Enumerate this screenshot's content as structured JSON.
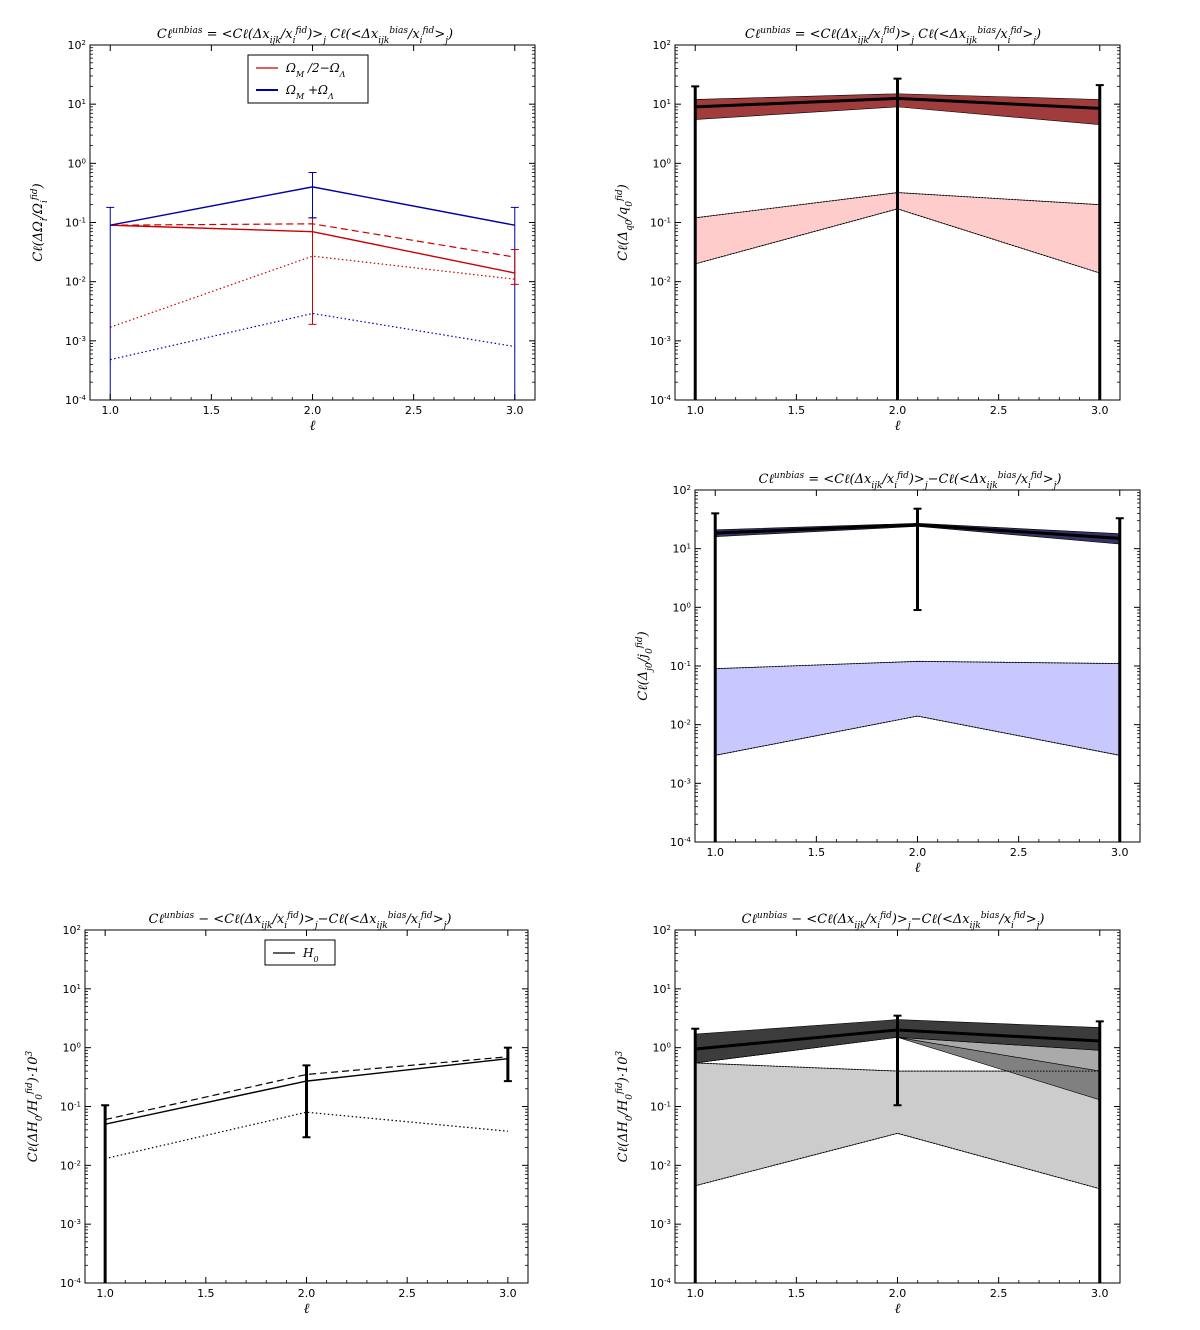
{
  "figure": {
    "panels": [
      "omega",
      "q0",
      "j0",
      "h0_left",
      "h0_right"
    ]
  },
  "chart_data": [
    {
      "id": "omega",
      "type": "line",
      "title": "C_ℓ^unbias = <C_ℓ(Δx_ijk/x_i^fid)>_j  C_ℓ(<Δx_ijk^bias/x_i^fid>_j)",
      "xlabel": "ℓ",
      "ylabel": "C_ℓ(ΔΩ_i/Ω_i^fid)",
      "xlim": [
        0.9,
        3.1
      ],
      "ylim_log10": [
        -4,
        2
      ],
      "xticks": [
        "1.0",
        "1.5",
        "2.0",
        "2.5",
        "3.0"
      ],
      "yticks": [
        "10^-4",
        "10^-3",
        "10^-2",
        "10^-1",
        "10^0",
        "10^1",
        "10^2"
      ],
      "legend": [
        "Ω_M /2−Ω_Λ",
        "Ω_M +Ω_Λ"
      ],
      "x": [
        1,
        2,
        3
      ],
      "series": [
        {
          "name": "Ω_M /2−Ω_Λ",
          "style": "solid",
          "color": "#cc0000",
          "values": [
            0.09,
            0.07,
            0.014
          ]
        },
        {
          "name": "Ω_M /2−Ω_Λ dashed",
          "style": "dashed",
          "color": "#cc0000",
          "values": [
            0.09,
            0.095,
            0.026
          ]
        },
        {
          "name": "Ω_M /2−Ω_Λ dotted",
          "style": "dotted",
          "color": "#cc0000",
          "values": [
            0.0017,
            0.027,
            0.011
          ]
        },
        {
          "name": "Ω_M +Ω_Λ",
          "style": "solid",
          "color": "#0000aa",
          "values": [
            0.09,
            0.4,
            0.09
          ]
        },
        {
          "name": "Ω_M +Ω_Λ dotted",
          "style": "dotted",
          "color": "#0000aa",
          "values": [
            0.00048,
            0.0029,
            0.0008
          ]
        }
      ],
      "errorbars": [
        {
          "x": 1,
          "lo": 0.0001,
          "hi": 0.18,
          "color": "#0000aa"
        },
        {
          "x": 2,
          "lo": 0.0019,
          "hi": 0.12,
          "color": "#cc0000"
        },
        {
          "x": 2,
          "lo": 0.12,
          "hi": 0.7,
          "color": "#0000aa"
        },
        {
          "x": 3,
          "lo": 0.0001,
          "hi": 0.18,
          "color": "#0000aa"
        },
        {
          "x": 3,
          "lo": 0.009,
          "hi": 0.035,
          "color": "#cc0000"
        }
      ]
    },
    {
      "id": "q0",
      "type": "area",
      "title": "C_ℓ^unbias = <C_ℓ(Δx_ijk/x_i^fid)>_j  C_ℓ(<Δx_ijk^bias/x_i^fid>_j)",
      "xlabel": "ℓ",
      "ylabel": "C_ℓ(Δ_q0/q_0^fid)",
      "xlim": [
        0.9,
        3.1
      ],
      "ylim_log10": [
        -4,
        2
      ],
      "xticks": [
        "1.0",
        "1.5",
        "2.0",
        "2.5",
        "3.0"
      ],
      "yticks": [
        "10^-4",
        "10^-3",
        "10^-2",
        "10^-1",
        "10^0",
        "10^1",
        "10^2"
      ],
      "x": [
        1,
        2,
        3
      ],
      "bands": [
        {
          "color": "#a03c3c",
          "upper": [
            12,
            15,
            12
          ],
          "lower": [
            5.5,
            9,
            4.5
          ]
        },
        {
          "color": "#ffcccc",
          "upper": [
            0.12,
            0.32,
            0.2
          ],
          "lower": [
            0.02,
            0.17,
            0.014
          ]
        }
      ],
      "lines": [
        {
          "values": [
            9,
            12.5,
            8.5
          ],
          "color": "#000000",
          "width": 3
        }
      ],
      "errorbars": [
        {
          "x": 1,
          "lo": 0.0001,
          "hi": 20
        },
        {
          "x": 2,
          "lo": 0.0001,
          "hi": 27
        },
        {
          "x": 3,
          "lo": 0.0001,
          "hi": 21
        }
      ]
    },
    {
      "id": "j0",
      "type": "area",
      "title": "C_ℓ^unbias = <C_ℓ(Δx_ijk/x_i^fid)>_j−C_ℓ(<Δx_ijk^bias/x_i^fid>_j)",
      "xlabel": "ℓ",
      "ylabel": "C_ℓ(Δ_j0/j_0^fid)",
      "xlim": [
        0.9,
        3.1
      ],
      "ylim_log10": [
        -4,
        2
      ],
      "xticks": [
        "1.0",
        "1.5",
        "2.0",
        "2.5",
        "3.0"
      ],
      "yticks": [
        "10^-4",
        "10^-3",
        "10^-2",
        "10^-1",
        "10^0",
        "10^1",
        "10^2"
      ],
      "x": [
        1,
        2,
        3
      ],
      "bands": [
        {
          "color": "#333366",
          "upper": [
            21,
            27,
            18
          ],
          "lower": [
            16,
            24,
            12
          ]
        },
        {
          "color": "#c8c8ff",
          "upper": [
            0.09,
            0.12,
            0.11
          ],
          "lower": [
            0.003,
            0.014,
            0.003
          ]
        }
      ],
      "lines": [
        {
          "values": [
            18.5,
            25.5,
            15
          ],
          "color": "#000000",
          "width": 3
        }
      ],
      "errorbars": [
        {
          "x": 1,
          "lo": 0.0001,
          "hi": 40
        },
        {
          "x": 2,
          "lo": 0.9,
          "hi": 48
        },
        {
          "x": 3,
          "lo": 0.0001,
          "hi": 33
        }
      ]
    },
    {
      "id": "h0_left",
      "type": "line",
      "title": "C_ℓ^unbias − <C_ℓ(Δx_ijk/x_i^fid)>_j−C_ℓ(<Δx_ijk^bias/x_i^fid>_j)",
      "xlabel": "ℓ",
      "ylabel": "C_ℓ(ΔH_0/H_0^fid)·10^3",
      "xlim": [
        0.9,
        3.1
      ],
      "ylim_log10": [
        -4,
        2
      ],
      "xticks": [
        "1.0",
        "1.5",
        "2.0",
        "2.5",
        "3.0"
      ],
      "yticks": [
        "10^-4",
        "10^-3",
        "10^-2",
        "10^-1",
        "10^0",
        "10^1",
        "10^2"
      ],
      "legend": [
        "H_0"
      ],
      "x": [
        1,
        2,
        3
      ],
      "series": [
        {
          "name": "H_0",
          "style": "solid",
          "color": "#000000",
          "values": [
            0.05,
            0.27,
            0.65
          ]
        },
        {
          "name": "H_0 dashed",
          "style": "dashed",
          "color": "#000000",
          "values": [
            0.06,
            0.35,
            0.7
          ]
        },
        {
          "name": "H_0 dotted",
          "style": "dotted",
          "color": "#000000",
          "values": [
            0.013,
            0.08,
            0.038
          ]
        }
      ],
      "errorbars": [
        {
          "x": 1,
          "lo": 0.0001,
          "hi": 0.105
        },
        {
          "x": 2,
          "lo": 0.03,
          "hi": 0.5
        },
        {
          "x": 3,
          "lo": 0.27,
          "hi": 1.0
        }
      ]
    },
    {
      "id": "h0_right",
      "type": "area",
      "title": "C_ℓ^unbias − <C_ℓ(Δx_ijk/x_i^fid)>_j−C_ℓ(<Δx_ijk^bias/x_i^fid>_j)",
      "xlabel": "ℓ",
      "ylabel": "C_ℓ(ΔH_0/H_0^fid)·10^3",
      "xlim": [
        0.9,
        3.1
      ],
      "ylim_log10": [
        -4,
        2
      ],
      "xticks": [
        "1.0",
        "1.5",
        "2.0",
        "2.5",
        "3.0"
      ],
      "yticks": [
        "10^-4",
        "10^-3",
        "10^-2",
        "10^-1",
        "10^0",
        "10^1",
        "10^2"
      ],
      "x": [
        1,
        2,
        3
      ],
      "bands": [
        {
          "color": "#cccccc",
          "upper": [
            0.55,
            0.4,
            0.4
          ],
          "lower": [
            0.0045,
            0.035,
            0.004
          ]
        },
        {
          "color": "#808080",
          "upper": [
            0.55,
            1.5,
            0.4
          ],
          "lower": [
            0.55,
            1.5,
            0.13
          ]
        },
        {
          "color": "#aaaaaa",
          "upper": [
            0.55,
            1.5,
            0.9
          ],
          "lower": [
            0.55,
            1.5,
            0.4
          ]
        },
        {
          "color": "#3c3c3c",
          "upper": [
            1.7,
            3.0,
            2.2
          ],
          "lower": [
            0.55,
            1.5,
            0.9
          ]
        }
      ],
      "lines": [
        {
          "values": [
            0.95,
            2.0,
            1.3
          ],
          "color": "#000000",
          "width": 3
        }
      ],
      "errorbars": [
        {
          "x": 1,
          "lo": 0.0001,
          "hi": 2.1
        },
        {
          "x": 2,
          "lo": 0.105,
          "hi": 3.5
        },
        {
          "x": 3,
          "lo": 0.0001,
          "hi": 2.8
        }
      ]
    }
  ]
}
